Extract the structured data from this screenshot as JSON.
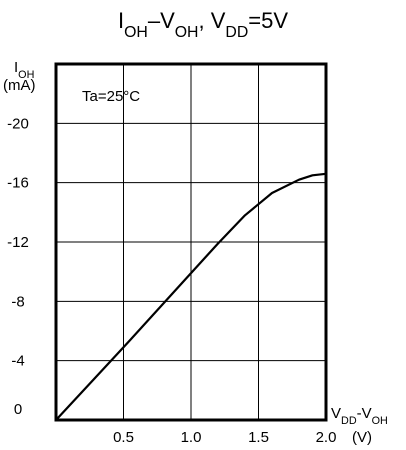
{
  "chart_data": {
    "type": "line",
    "title": {
      "parts": [
        {
          "text": "I",
          "sub": false
        },
        {
          "text": "OH",
          "sub": true
        },
        {
          "text": "–V",
          "sub": false
        },
        {
          "text": "OH",
          "sub": true
        },
        {
          "text": ", V",
          "sub": false
        },
        {
          "text": "DD",
          "sub": true
        },
        {
          "text": "=5V",
          "sub": false
        }
      ]
    },
    "ylabel": {
      "line1": [
        {
          "text": "I",
          "sub": false
        },
        {
          "text": "OH",
          "sub": true
        }
      ],
      "line2": "(mA)"
    },
    "xlabel": {
      "line1": [
        {
          "text": "V",
          "sub": false
        },
        {
          "text": "DD",
          "sub": true
        },
        {
          "text": "-V",
          "sub": false
        },
        {
          "text": "OH",
          "sub": true
        }
      ],
      "line2": "(V)"
    },
    "annotation": "Ta=25°C",
    "x_ticks": [
      "0.5",
      "1.0",
      "1.5",
      "2.0"
    ],
    "y_ticks": [
      "0",
      "-4",
      "-8",
      "-12",
      "-16",
      "-20"
    ],
    "xlim": [
      0,
      2.0
    ],
    "ylim": [
      0,
      -24
    ],
    "grid": true,
    "series": [
      {
        "points": [
          [
            0.0,
            0
          ],
          [
            0.5,
            -4.9
          ],
          [
            1.0,
            -9.9
          ],
          [
            1.2,
            -11.9
          ],
          [
            1.4,
            -13.8
          ],
          [
            1.6,
            -15.3
          ],
          [
            1.8,
            -16.2
          ],
          [
            1.9,
            -16.5
          ],
          [
            2.0,
            -16.6
          ]
        ]
      }
    ]
  }
}
